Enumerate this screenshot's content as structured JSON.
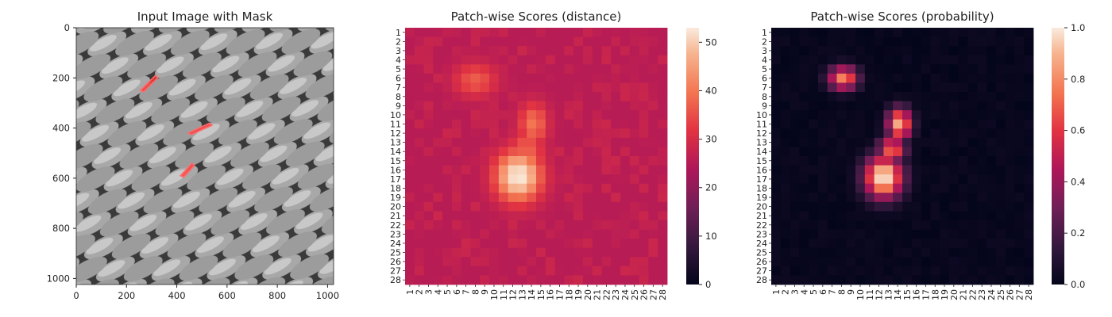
{
  "chart_data": [
    {
      "type": "image",
      "title": "Input Image with Mask",
      "xlim": [
        0,
        1024
      ],
      "ylim": [
        1024,
        0
      ],
      "xticks": [
        0,
        200,
        400,
        600,
        800,
        1000
      ],
      "yticks": [
        0,
        200,
        400,
        600,
        800,
        1000
      ],
      "mask_color": "#ff3b3b",
      "mask_regions": [
        {
          "x": [
            255,
            325
          ],
          "y": [
            190,
            250
          ]
        },
        {
          "x": [
            445,
            540
          ],
          "y": [
            380,
            420
          ]
        },
        {
          "x": [
            415,
            470
          ],
          "y": [
            540,
            590
          ]
        }
      ]
    },
    {
      "type": "heatmap",
      "title": "Patch-wise Scores (distance)",
      "rows": 28,
      "cols": 28,
      "xlabels": [
        "1",
        "2",
        "3",
        "4",
        "5",
        "6",
        "7",
        "8",
        "9",
        "10",
        "11",
        "12",
        "13",
        "14",
        "15",
        "16",
        "17",
        "18",
        "19",
        "20",
        "21",
        "22",
        "23",
        "24",
        "25",
        "26",
        "27",
        "28"
      ],
      "ylabels": [
        "1",
        "2",
        "3",
        "4",
        "5",
        "6",
        "7",
        "8",
        "9",
        "10",
        "11",
        "12",
        "13",
        "14",
        "15",
        "16",
        "17",
        "18",
        "19",
        "20",
        "21",
        "22",
        "23",
        "24",
        "25",
        "26",
        "27",
        "28"
      ],
      "vmin": 0,
      "vmax": 53,
      "colorbar_ticks": [
        0,
        10,
        20,
        30,
        40,
        50
      ],
      "background_value": 24,
      "hotspots": [
        {
          "row": 6.2,
          "col": 8.0,
          "peak": 35,
          "sigma_row": 1.3,
          "sigma_col": 1.6
        },
        {
          "row": 11.0,
          "col": 14.2,
          "peak": 38,
          "sigma_row": 1.6,
          "sigma_col": 1.1
        },
        {
          "row": 16.7,
          "col": 12.6,
          "peak": 53,
          "sigma_row": 1.9,
          "sigma_col": 1.7
        },
        {
          "row": 13.8,
          "col": 13.5,
          "peak": 36,
          "sigma_row": 1.4,
          "sigma_col": 1.3
        }
      ]
    },
    {
      "type": "heatmap",
      "title": "Patch-wise Scores (probability)",
      "rows": 28,
      "cols": 28,
      "xlabels": [
        "1",
        "2",
        "3",
        "4",
        "5",
        "6",
        "7",
        "8",
        "9",
        "10",
        "11",
        "12",
        "13",
        "14",
        "15",
        "16",
        "17",
        "18",
        "19",
        "20",
        "21",
        "22",
        "23",
        "24",
        "25",
        "26",
        "27",
        "28"
      ],
      "ylabels": [
        "1",
        "2",
        "3",
        "4",
        "5",
        "6",
        "7",
        "8",
        "9",
        "10",
        "11",
        "12",
        "13",
        "14",
        "15",
        "16",
        "17",
        "18",
        "19",
        "20",
        "21",
        "22",
        "23",
        "24",
        "25",
        "26",
        "27",
        "28"
      ],
      "vmin": 0.0,
      "vmax": 1.0,
      "colorbar_ticks": [
        "0.0",
        "0.2",
        "0.4",
        "0.6",
        "0.8",
        "1.0"
      ],
      "hotspots": [
        {
          "row": 6.0,
          "col": 8.2,
          "peak": 0.75,
          "sigma_row": 0.9,
          "sigma_col": 1.1
        },
        {
          "row": 11.0,
          "col": 14.2,
          "peak": 0.85,
          "sigma_row": 1.2,
          "sigma_col": 0.9
        },
        {
          "row": 16.8,
          "col": 12.5,
          "peak": 1.0,
          "sigma_row": 1.6,
          "sigma_col": 1.4
        },
        {
          "row": 13.8,
          "col": 13.4,
          "peak": 0.7,
          "sigma_row": 1.0,
          "sigma_col": 1.0
        }
      ]
    }
  ]
}
